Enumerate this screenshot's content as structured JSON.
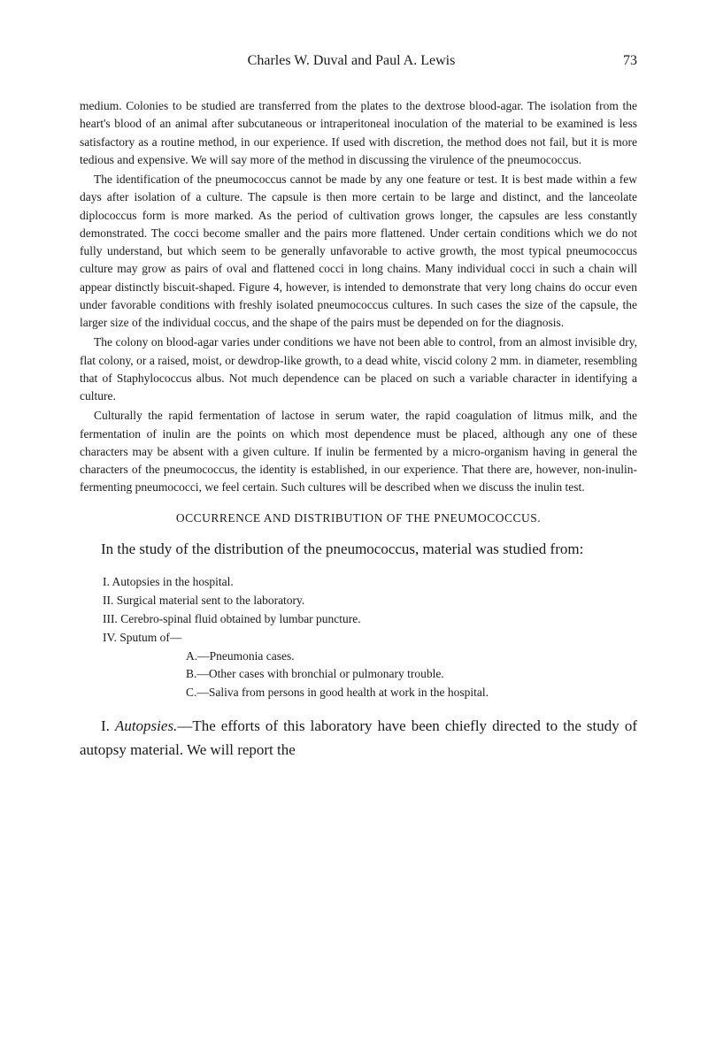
{
  "header": {
    "title": "Charles W. Duval and Paul A. Lewis",
    "page_number": "73"
  },
  "paragraphs": {
    "p1": "medium. Colonies to be studied are transferred from the plates to the dextrose blood-agar. The isolation from the heart's blood of an animal after subcutaneous or intraperitoneal inoculation of the material to be examined is less satisfactory as a routine method, in our experience. If used with discretion, the method does not fail, but it is more tedious and expensive. We will say more of the method in discussing the virulence of the pneumococcus.",
    "p2": "The identification of the pneumococcus cannot be made by any one feature or test. It is best made within a few days after isolation of a culture. The capsule is then more certain to be large and distinct, and the lanceolate diplococcus form is more marked. As the period of cultivation grows longer, the capsules are less constantly demonstrated. The cocci become smaller and the pairs more flattened. Under certain conditions which we do not fully understand, but which seem to be generally unfavorable to active growth, the most typical pneumococcus culture may grow as pairs of oval and flattened cocci in long chains. Many individual cocci in such a chain will appear distinctly biscuit-shaped. Figure 4, however, is intended to demonstrate that very long chains do occur even under favorable conditions with freshly isolated pneumococcus cultures. In such cases the size of the capsule, the larger size of the individual coccus, and the shape of the pairs must be depended on for the diagnosis.",
    "p3": "The colony on blood-agar varies under conditions we have not been able to control, from an almost invisible dry, flat colony, or a raised, moist, or dewdrop-like growth, to a dead white, viscid colony 2 mm. in diameter, resembling that of Staphylococcus albus. Not much dependence can be placed on such a variable character in identifying a culture.",
    "p4": "Culturally the rapid fermentation of lactose in serum water, the rapid coagulation of litmus milk, and the fermentation of inulin are the points on which most dependence must be placed, although any one of these characters may be absent with a given culture. If inulin be fermented by a micro-organism having in general the characters of the pneumococcus, the identity is established, in our experience. That there are, however, non-inulin-fermenting pneumococci, we feel certain. Such cultures will be described when we discuss the inulin test."
  },
  "section_heading": "OCCURRENCE AND DISTRIBUTION OF THE PNEUMOCOCCUS.",
  "intro": "In the study of the distribution of the pneumococcus, material was studied from:",
  "list": {
    "i1": "I. Autopsies in the hospital.",
    "i2": "II. Surgical material sent to the laboratory.",
    "i3": "III. Cerebro-spinal fluid obtained by lumbar puncture.",
    "i4": "IV. Sputum of—",
    "a": "A.—Pneumonia cases.",
    "b": "B.—Other cases with bronchial or pulmonary trouble.",
    "c": "C.—Saliva from persons in good health at work in the hospital."
  },
  "final": {
    "prefix": "I. ",
    "italic": "Autopsies.",
    "rest": "—The efforts of this laboratory have been chiefly directed to the study of autopsy material. We will report the"
  }
}
